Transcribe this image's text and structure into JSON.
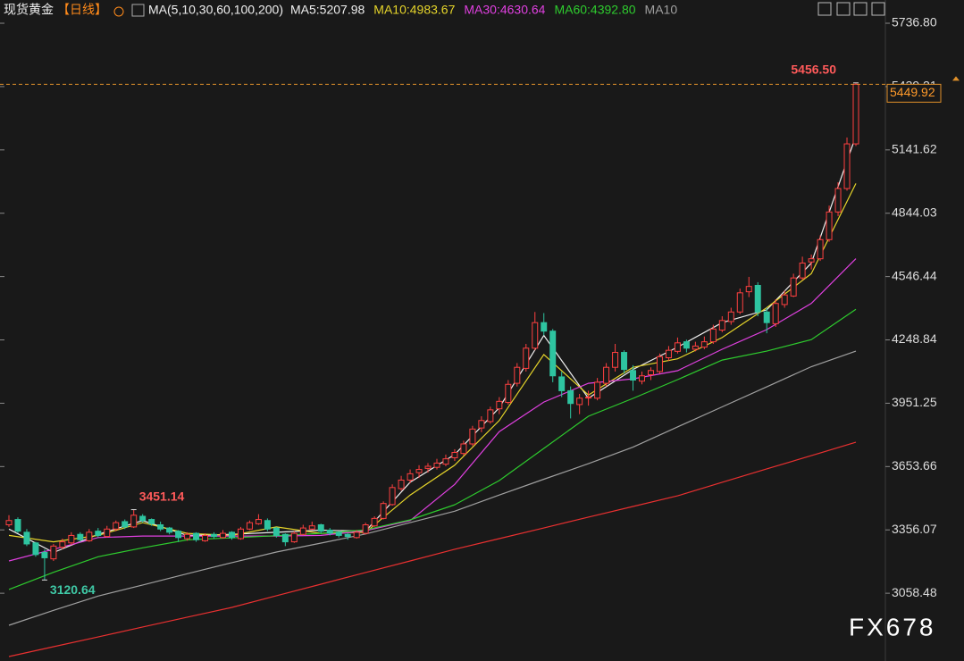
{
  "chart_data": {
    "type": "candlestick",
    "title": "现货黄金",
    "period": "【日线】",
    "indicator": "MA(5,10,30,60,100,200)",
    "up_color": "#ff4040",
    "down_color": "#2ec4a0",
    "ylim": [
      2740,
      5846
    ],
    "yticks": [
      {
        "value": 5736.8,
        "label": "5736.80"
      },
      5439.21,
      5141.62,
      4844.03,
      4546.44,
      4248.84,
      3951.25,
      3653.66,
      3356.07,
      3058.48
    ],
    "candles": [
      [
        3380,
        3425,
        3370,
        3400
      ],
      [
        3405,
        3415,
        3340,
        3350
      ],
      [
        3345,
        3360,
        3280,
        3290
      ],
      [
        3295,
        3300,
        3230,
        3240
      ],
      [
        3250,
        3265,
        3120.64,
        3225
      ],
      [
        3220,
        3290,
        3210,
        3280
      ],
      [
        3275,
        3315,
        3265,
        3300
      ],
      [
        3295,
        3345,
        3285,
        3330
      ],
      [
        3335,
        3345,
        3300,
        3310
      ],
      [
        3305,
        3360,
        3300,
        3345
      ],
      [
        3350,
        3365,
        3320,
        3330
      ],
      [
        3325,
        3375,
        3320,
        3360
      ],
      [
        3360,
        3400,
        3350,
        3390
      ],
      [
        3395,
        3405,
        3360,
        3370
      ],
      [
        3370,
        3451.14,
        3365,
        3425
      ],
      [
        3420,
        3430,
        3390,
        3400
      ],
      [
        3405,
        3410,
        3375,
        3385
      ],
      [
        3380,
        3395,
        3350,
        3360
      ],
      [
        3365,
        3370,
        3335,
        3345
      ],
      [
        3350,
        3355,
        3300,
        3320
      ],
      [
        3315,
        3345,
        3305,
        3335
      ],
      [
        3340,
        3345,
        3300,
        3310
      ],
      [
        3305,
        3340,
        3300,
        3330
      ],
      [
        3335,
        3345,
        3315,
        3325
      ],
      [
        3320,
        3355,
        3315,
        3340
      ],
      [
        3345,
        3350,
        3310,
        3320
      ],
      [
        3315,
        3370,
        3310,
        3360
      ],
      [
        3360,
        3400,
        3355,
        3390
      ],
      [
        3385,
        3430,
        3380,
        3405
      ],
      [
        3400,
        3410,
        3350,
        3360
      ],
      [
        3365,
        3370,
        3320,
        3330
      ],
      [
        3335,
        3340,
        3280,
        3300
      ],
      [
        3300,
        3350,
        3295,
        3340
      ],
      [
        3335,
        3380,
        3330,
        3365
      ],
      [
        3360,
        3395,
        3355,
        3375
      ],
      [
        3380,
        3385,
        3340,
        3350
      ],
      [
        3355,
        3365,
        3330,
        3340
      ],
      [
        3345,
        3350,
        3320,
        3330
      ],
      [
        3335,
        3340,
        3310,
        3325
      ],
      [
        3320,
        3355,
        3315,
        3345
      ],
      [
        3340,
        3390,
        3335,
        3380
      ],
      [
        3375,
        3420,
        3370,
        3410
      ],
      [
        3410,
        3490,
        3405,
        3480
      ],
      [
        3475,
        3570,
        3470,
        3555
      ],
      [
        3550,
        3610,
        3540,
        3590
      ],
      [
        3590,
        3640,
        3575,
        3620
      ],
      [
        3625,
        3660,
        3600,
        3640
      ],
      [
        3645,
        3670,
        3625,
        3655
      ],
      [
        3650,
        3690,
        3640,
        3670
      ],
      [
        3665,
        3710,
        3655,
        3690
      ],
      [
        3695,
        3735,
        3680,
        3720
      ],
      [
        3715,
        3775,
        3705,
        3760
      ],
      [
        3760,
        3845,
        3750,
        3830
      ],
      [
        3835,
        3890,
        3815,
        3870
      ],
      [
        3865,
        3935,
        3855,
        3920
      ],
      [
        3925,
        3980,
        3900,
        3960
      ],
      [
        3955,
        4060,
        3945,
        4040
      ],
      [
        4045,
        4140,
        4030,
        4120
      ],
      [
        4115,
        4230,
        4100,
        4210
      ],
      [
        4210,
        4380,
        4200,
        4330
      ],
      [
        4330,
        4375,
        4270,
        4290
      ],
      [
        4290,
        4300,
        4050,
        4080
      ],
      [
        4075,
        4100,
        3980,
        4010
      ],
      [
        4010,
        4030,
        3880,
        3950
      ],
      [
        3945,
        3995,
        3900,
        3975
      ],
      [
        3980,
        4010,
        3940,
        3980
      ],
      [
        3975,
        4070,
        3965,
        4050
      ],
      [
        4045,
        4140,
        4030,
        4120
      ],
      [
        4120,
        4230,
        4100,
        4190
      ],
      [
        4190,
        4200,
        4090,
        4110
      ],
      [
        4105,
        4130,
        4010,
        4060
      ],
      [
        4055,
        4100,
        4040,
        4080
      ],
      [
        4085,
        4120,
        4060,
        4105
      ],
      [
        4100,
        4185,
        4090,
        4170
      ],
      [
        4165,
        4220,
        4150,
        4200
      ],
      [
        4195,
        4260,
        4185,
        4235
      ],
      [
        4240,
        4250,
        4190,
        4210
      ],
      [
        4205,
        4240,
        4195,
        4220
      ],
      [
        4215,
        4265,
        4205,
        4240
      ],
      [
        4240,
        4320,
        4230,
        4300
      ],
      [
        4295,
        4360,
        4285,
        4340
      ],
      [
        4335,
        4400,
        4320,
        4380
      ],
      [
        4380,
        4490,
        4370,
        4470
      ],
      [
        4475,
        4545,
        4450,
        4500
      ],
      [
        4505,
        4520,
        4360,
        4380
      ],
      [
        4380,
        4400,
        4280,
        4330
      ],
      [
        4325,
        4440,
        4310,
        4420
      ],
      [
        4415,
        4480,
        4400,
        4460
      ],
      [
        4455,
        4560,
        4450,
        4540
      ],
      [
        4540,
        4640,
        4530,
        4610
      ],
      [
        4615,
        4650,
        4580,
        4630
      ],
      [
        4630,
        4740,
        4620,
        4720
      ],
      [
        4720,
        4880,
        4710,
        4850
      ],
      [
        4850,
        4990,
        4830,
        4960
      ],
      [
        4960,
        5200,
        4950,
        5170
      ],
      [
        5170,
        5456.5,
        5160,
        5449.92
      ]
    ],
    "series": [
      {
        "name": "MA5:5207.98",
        "color": "#f0f0f0",
        "values": [
          3360,
          3250,
          3335,
          3400,
          3330,
          3335,
          3345,
          3355,
          3350,
          3580,
          3710,
          3930,
          4270,
          3975,
          4110,
          4215,
          4330,
          4390,
          4610,
          5207.98
        ]
      },
      {
        "name": "MA10:4983.67",
        "color": "#e6d52a",
        "values": [
          3330,
          3300,
          3330,
          3390,
          3340,
          3330,
          3370,
          3340,
          3345,
          3520,
          3660,
          3870,
          4180,
          3990,
          4120,
          4160,
          4260,
          4400,
          4560,
          4983.67
        ]
      },
      {
        "name": "MA30:4630.64",
        "color": "#e040e0",
        "values": [
          3210,
          3265,
          3320,
          3327,
          3327,
          3327,
          3327,
          3330,
          3352,
          3400,
          3570,
          3818,
          3957,
          4045,
          4066,
          4104,
          4205,
          4297,
          4420,
          4630.64
        ]
      },
      {
        "name": "MA60:4392.80",
        "color": "#2ecc2e",
        "values": [
          3076,
          3157,
          3230,
          3272,
          3309,
          3319,
          3329,
          3340,
          3356,
          3403,
          3474,
          3588,
          3739,
          3890,
          3974,
          4062,
          4154,
          4196,
          4250,
          4392.8
        ]
      },
      {
        "name": "MA10",
        "color": "#a0a0a0",
        "values": [
          2908,
          2978,
          3045,
          3097,
          3150,
          3202,
          3252,
          3294,
          3337,
          3390,
          3444,
          3520,
          3594,
          3667,
          3745,
          3840,
          3934,
          4028,
          4123,
          4196
        ]
      },
      {
        "color": "#e83030",
        "values": [
          2761,
          2807,
          2853,
          2900,
          2946,
          2992,
          3047,
          3101,
          3156,
          3210,
          3265,
          3315,
          3365,
          3416,
          3466,
          3516,
          3580,
          3643,
          3705,
          3768
        ]
      }
    ],
    "annotations": [
      {
        "value": 3451.14,
        "label": "3451.14"
      },
      {
        "value": 3120.64,
        "label": "3120.64"
      },
      {
        "value": 5456.5,
        "label": "5456.50"
      }
    ],
    "price_label": {
      "value": 5449.92,
      "label": "5449.92"
    },
    "watermark": "FX678"
  }
}
